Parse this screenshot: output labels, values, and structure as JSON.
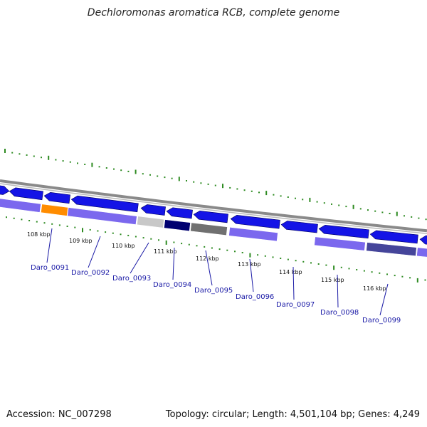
{
  "title": "Dechloromonas aromatica RCB, complete genome",
  "accession": "Accession: NC_007298",
  "summary": "Topology: circular; Length: 4,501,104 bp; Genes: 4,249",
  "colors": {
    "backbone": "#8a8a8a",
    "forward_cds": "#1414e6",
    "ruler_dots": "#2e8b22",
    "label_text": "#1a1aa6",
    "leader_line": "#1a1aa6"
  },
  "kbp_ticks": [
    "108 kbp",
    "109 kbp",
    "110 kbp",
    "111 kbp",
    "112 kbp",
    "113 kbp",
    "114 kbp",
    "115 kbp",
    "116 kbp"
  ],
  "gene_labels": [
    "Daro_0091",
    "Daro_0092",
    "Daro_0093",
    "Daro_0094",
    "Daro_0095",
    "Daro_0096",
    "Daro_0097",
    "Daro_0098",
    "Daro_0099"
  ],
  "cog_colors": [
    "#7b68ee",
    "#ff8c00",
    "#7b68ee",
    "#c8c8c8",
    "#000070",
    "#707070",
    "#7b68ee",
    "#7b68ee",
    "#45459a",
    "#7b68ee"
  ]
}
